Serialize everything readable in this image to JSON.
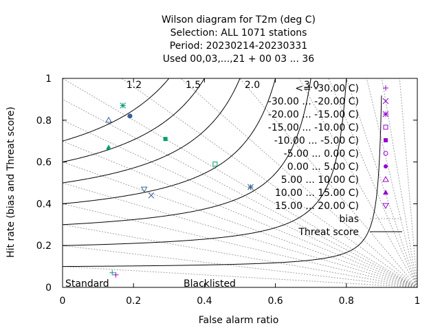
{
  "chart_data": {
    "type": "scatter",
    "subtype": "wilson-diagram",
    "title_lines": [
      "Wilson diagram  for T2m (deg C)",
      "Selection: ALL   1071 stations",
      "Period: 20230214-20230331",
      "Used  00,03,...,21  + 00 03 ... 36"
    ],
    "xlabel": "False alarm ratio",
    "ylabel": "Hit rate (bias and Threat score)",
    "xlim": [
      0,
      1
    ],
    "ylim": [
      0,
      1
    ],
    "xticks": [
      "0",
      "0.2",
      "0.4",
      "0.6",
      "0.8",
      "1"
    ],
    "yticks": [
      "0",
      "0.2",
      "0.4",
      "0.6",
      "0.8",
      "1"
    ],
    "bias_labels": [
      "1.2",
      "1.5",
      "2.0",
      "3.0"
    ],
    "bias_values": [
      1.2,
      1.5,
      2.0,
      3.0
    ],
    "bias_lines_extra": [
      0.1,
      0.2,
      0.3,
      0.4,
      0.5,
      0.6,
      0.7,
      0.8,
      0.9,
      1.0,
      4.0,
      5.0,
      7.0,
      10.0,
      20.0
    ],
    "threat_scores": [
      0.1,
      0.2,
      0.3,
      0.4,
      0.5,
      0.6,
      0.7
    ],
    "series": [
      {
        "name": "<= -30.00 C)",
        "symbol": "plus",
        "color": "#9400d3",
        "x": [],
        "y": []
      },
      {
        "name": "-30.00 ... -20.00 C)",
        "symbol": "cross",
        "color": "#9400d3",
        "x": [],
        "y": []
      },
      {
        "name": "-20.00 ... -15.00 C)",
        "symbol": "star",
        "color": "#9400d3",
        "x": [],
        "y": []
      },
      {
        "name": "-15.00 ... -10.00 C)",
        "symbol": "square-open",
        "color": "#9400d3",
        "x": [],
        "y": []
      },
      {
        "name": "-10.00 ... -5.00 C)",
        "symbol": "square-filled",
        "color": "#9400d3",
        "x": [],
        "y": []
      },
      {
        "name": "-5.00 ... 0.00 C)",
        "symbol": "circle-open",
        "color": "#9400d3",
        "x": [],
        "y": []
      },
      {
        "name": "0.00 ... 5.00 C)",
        "symbol": "circle-filled",
        "color": "#9400d3",
        "x": [],
        "y": []
      },
      {
        "name": "5.00 ... 10.00 C)",
        "symbol": "triangle-open",
        "color": "#9400d3",
        "x": [],
        "y": []
      },
      {
        "name": "10.00 ... 15.00 C)",
        "symbol": "triangle-filled",
        "color": "#9400d3",
        "x": [],
        "y": []
      },
      {
        "name": "15.00 ... 20.00 C)",
        "symbol": "inv-triangle-open",
        "color": "#9400d3",
        "x": [],
        "y": []
      }
    ],
    "points": [
      {
        "group": "Standard",
        "symbol": "plus",
        "color": "#9400d3",
        "x": 0.15,
        "y": 0.06
      },
      {
        "group": "Blacklisted",
        "symbol": "plus",
        "color": "#009e73",
        "x": 0.14,
        "y": 0.07
      },
      {
        "group": "Standard",
        "symbol": "cross",
        "color": "#3a5f9a",
        "x": 0.25,
        "y": 0.44
      },
      {
        "group": "Blacklisted",
        "symbol": "cross",
        "color": "#009e73",
        "x": 0.53,
        "y": 0.48
      },
      {
        "group": "Standard",
        "symbol": "star",
        "color": "#3a5f9a",
        "x": 0.53,
        "y": 0.48
      },
      {
        "group": "Blacklisted",
        "symbol": "star",
        "color": "#009e73",
        "x": 0.17,
        "y": 0.87
      },
      {
        "group": "Standard",
        "symbol": "square-open",
        "color": "#009e73",
        "x": 0.43,
        "y": 0.59
      },
      {
        "group": "Standard",
        "symbol": "square-filled",
        "color": "#009e73",
        "x": 0.29,
        "y": 0.71
      },
      {
        "group": "Standard",
        "symbol": "circle-open",
        "color": "#3a5f9a",
        "x": 0.19,
        "y": 0.82
      },
      {
        "group": "Blacklisted",
        "symbol": "circle-filled",
        "color": "#3a5f9a",
        "x": 0.19,
        "y": 0.82
      },
      {
        "group": "Standard",
        "symbol": "triangle-open",
        "color": "#3a5f9a",
        "x": 0.13,
        "y": 0.8
      },
      {
        "group": "Standard",
        "symbol": "triangle-filled",
        "color": "#009e73",
        "x": 0.13,
        "y": 0.67
      },
      {
        "group": "Standard",
        "symbol": "inv-triangle-open",
        "color": "#3a5f9a",
        "x": 0.23,
        "y": 0.47
      }
    ],
    "legend_extra": {
      "bias": "bias",
      "threat": "Threat score"
    },
    "group_labels": {
      "standard": {
        "text": "Standard",
        "color": "#9400d3"
      },
      "blacklisted": {
        "text": "Blacklisted",
        "color": "#009e73"
      }
    },
    "legend_position": "right"
  }
}
